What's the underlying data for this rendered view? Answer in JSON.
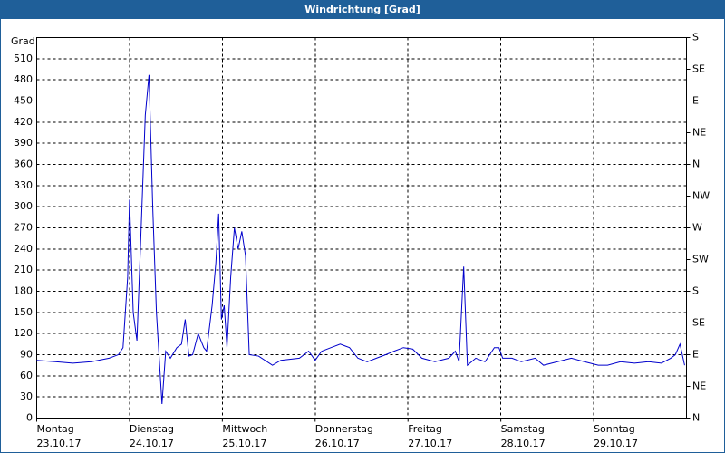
{
  "chart_data": {
    "type": "line",
    "title": "Windrichtung [Grad]",
    "y_label": "Grad",
    "color": "#0000cc",
    "grid": true,
    "xlim": [
      0,
      7
    ],
    "xticks": [
      {
        "value": 0,
        "label": "23.10.17"
      },
      {
        "value": 1,
        "label": "24.10.17"
      },
      {
        "value": 2,
        "label": "25.10.17"
      },
      {
        "value": 3,
        "label": "26.10.17"
      },
      {
        "value": 4,
        "label": "27.10.17"
      },
      {
        "value": 5,
        "label": "28.10.17"
      },
      {
        "value": 6,
        "label": "29.10.17"
      }
    ],
    "xtick_days": [
      "Montag",
      "Dienstag",
      "Mittwoch",
      "Donnerstag",
      "Freitag",
      "Samstag",
      "Sonntag"
    ],
    "ylim": [
      0,
      540
    ],
    "yticks": [
      0,
      30,
      60,
      90,
      120,
      150,
      180,
      210,
      240,
      270,
      300,
      330,
      360,
      390,
      420,
      450,
      480,
      510
    ],
    "y2lim": [
      0,
      540
    ],
    "y2ticks": [
      {
        "value": 0,
        "label": "N"
      },
      {
        "value": 45,
        "label": "NE"
      },
      {
        "value": 90,
        "label": "E"
      },
      {
        "value": 135,
        "label": "SE"
      },
      {
        "value": 180,
        "label": "S"
      },
      {
        "value": 225,
        "label": "SW"
      },
      {
        "value": 270,
        "label": "W"
      },
      {
        "value": 315,
        "label": "NW"
      },
      {
        "value": 360,
        "label": "N"
      },
      {
        "value": 405,
        "label": "NE"
      },
      {
        "value": 450,
        "label": "E"
      },
      {
        "value": 495,
        "label": "SE"
      },
      {
        "value": 540,
        "label": "S"
      }
    ],
    "x": [
      0,
      0.2,
      0.39,
      0.59,
      0.78,
      0.88,
      0.93,
      0.98,
      1.0,
      1.04,
      1.08,
      1.12,
      1.17,
      1.21,
      1.25,
      1.29,
      1.35,
      1.39,
      1.44,
      1.51,
      1.56,
      1.6,
      1.64,
      1.68,
      1.74,
      1.8,
      1.83,
      1.89,
      1.93,
      1.96,
      1.99,
      2.02,
      2.05,
      2.09,
      2.13,
      2.17,
      2.21,
      2.25,
      2.29,
      2.39,
      2.54,
      2.63,
      2.83,
      2.93,
      3.0,
      3.07,
      3.17,
      3.27,
      3.37,
      3.46,
      3.56,
      3.66,
      3.76,
      3.85,
      3.95,
      4.05,
      4.15,
      4.29,
      4.44,
      4.51,
      4.55,
      4.6,
      4.64,
      4.73,
      4.83,
      4.93,
      4.98,
      5.02,
      5.12,
      5.22,
      5.37,
      5.46,
      5.61,
      5.76,
      5.9,
      6.05,
      6.15,
      6.29,
      6.44,
      6.59,
      6.73,
      6.83,
      6.88,
      6.93,
      6.98
    ],
    "values": [
      82,
      80,
      78,
      80,
      85,
      90,
      100,
      200,
      310,
      150,
      110,
      250,
      430,
      487,
      300,
      150,
      20,
      95,
      85,
      100,
      105,
      140,
      88,
      90,
      120,
      100,
      95,
      160,
      220,
      290,
      140,
      160,
      100,
      200,
      270,
      240,
      265,
      230,
      90,
      88,
      75,
      82,
      85,
      95,
      82,
      95,
      100,
      105,
      100,
      85,
      80,
      85,
      90,
      95,
      100,
      98,
      85,
      80,
      85,
      95,
      80,
      215,
      75,
      85,
      80,
      100,
      100,
      85,
      85,
      80,
      85,
      75,
      80,
      85,
      80,
      75,
      75,
      80,
      78,
      80,
      78,
      85,
      90,
      105,
      75
    ]
  }
}
